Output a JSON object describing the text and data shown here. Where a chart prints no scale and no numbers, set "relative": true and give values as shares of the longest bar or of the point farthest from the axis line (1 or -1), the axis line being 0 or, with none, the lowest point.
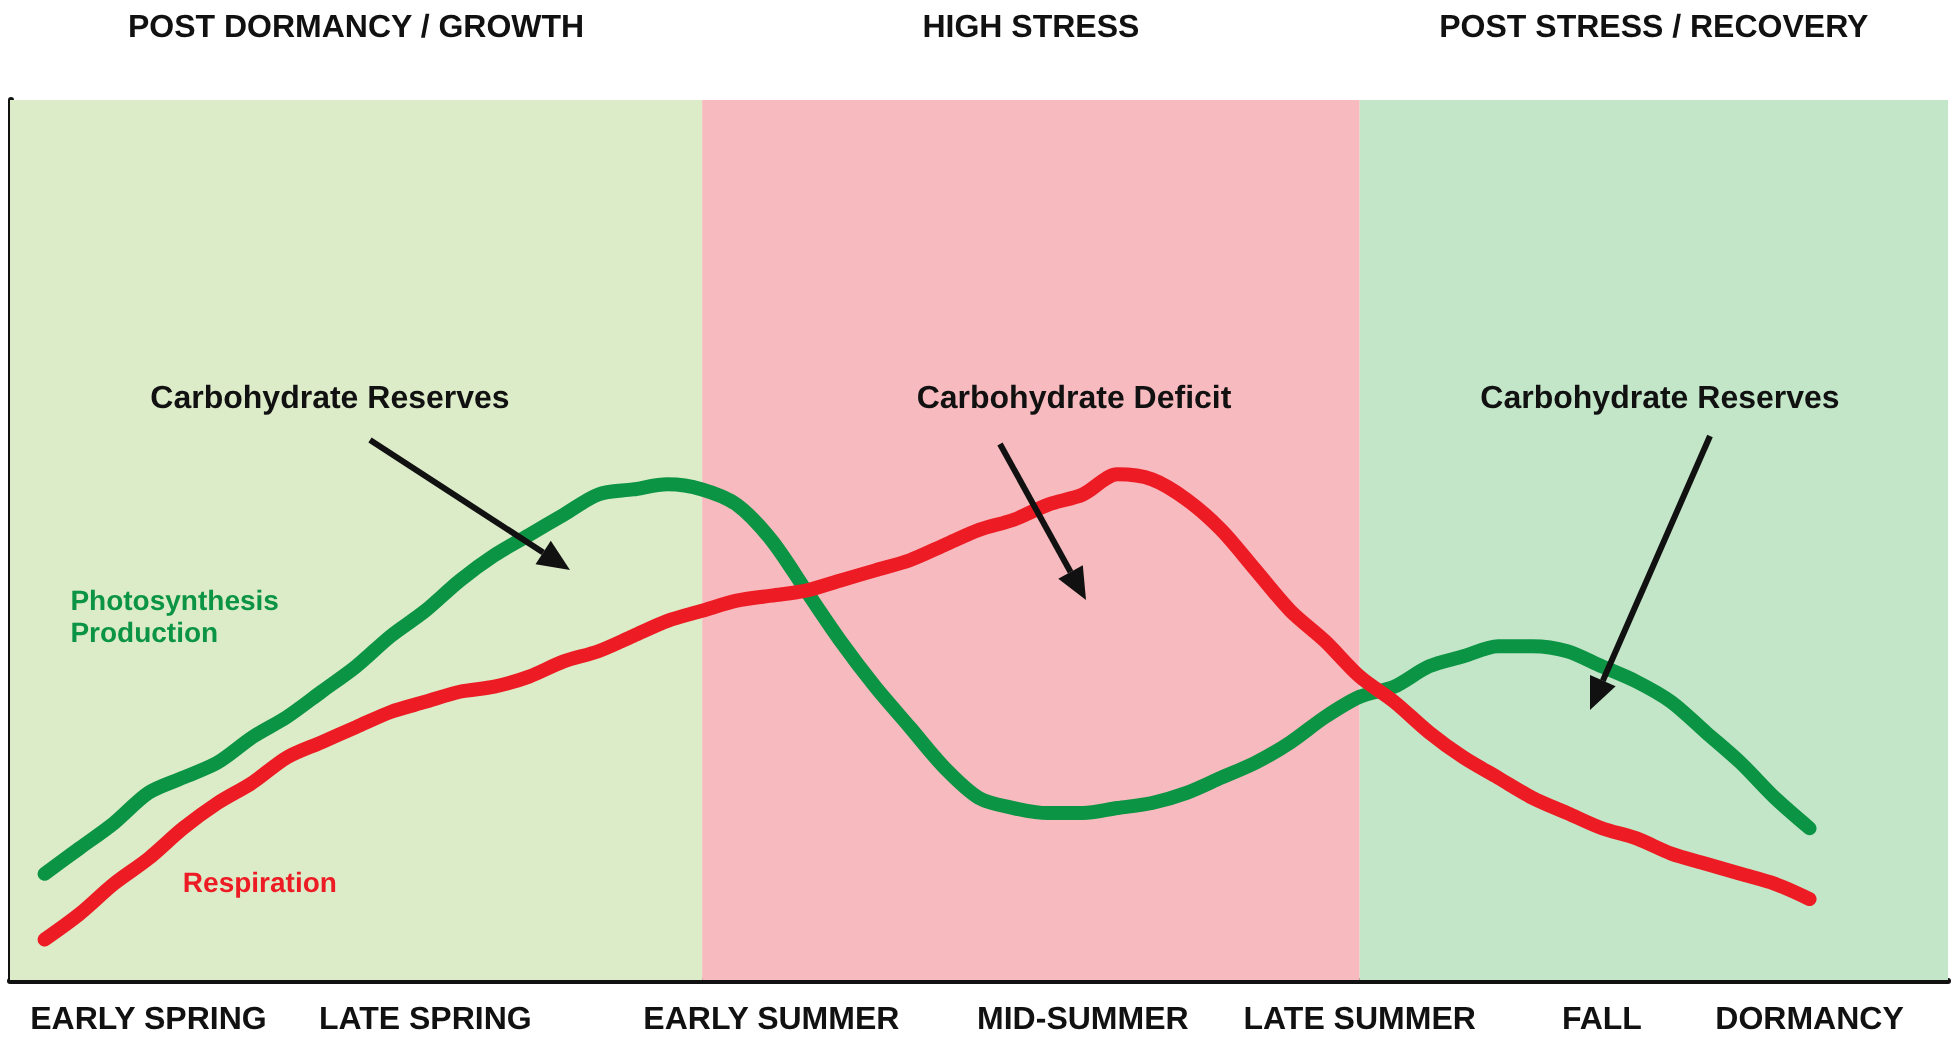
{
  "chart_data": {
    "type": "line",
    "relative": true,
    "legend": false,
    "grid": false,
    "marker": "none",
    "line_style": "solid",
    "tick_labels": "x",
    "categories": [
      null,
      null,
      null,
      null,
      "EARLY SPRING",
      null,
      null,
      null,
      null,
      null,
      null,
      null,
      "LATE SPRING",
      null,
      null,
      null,
      null,
      null,
      null,
      null,
      null,
      null,
      "EARLY SUMMER",
      null,
      null,
      null,
      null,
      null,
      null,
      null,
      null,
      "MID-SUMMER",
      null,
      null,
      null,
      null,
      null,
      null,
      null,
      "LATE SUMMER",
      null,
      null,
      null,
      null,
      null,
      null,
      "FALL",
      null,
      null,
      null,
      null,
      null,
      "DORMANCY",
      null,
      null,
      null,
      null
    ],
    "series": [
      {
        "name": "Photosynthesis Production",
        "color": "#0b9444",
        "values": [
          null,
          0.21,
          0.26,
          0.31,
          0.37,
          0.4,
          0.43,
          0.48,
          0.52,
          0.57,
          0.62,
          0.68,
          0.73,
          0.79,
          0.84,
          0.88,
          0.92,
          0.96,
          0.97,
          0.98,
          0.97,
          0.94,
          0.87,
          0.77,
          0.67,
          0.58,
          0.5,
          0.42,
          0.36,
          0.34,
          0.33,
          0.33,
          0.34,
          0.35,
          0.37,
          0.4,
          0.43,
          0.47,
          0.52,
          0.56,
          0.58,
          0.62,
          0.64,
          0.66,
          0.66,
          0.65,
          0.62,
          0.59,
          0.55,
          0.49,
          0.43,
          0.36,
          0.3,
          null,
          null,
          null,
          null
        ]
      },
      {
        "name": "Respiration",
        "color": "#ed1c24",
        "values": [
          null,
          0.08,
          0.13,
          0.19,
          0.24,
          0.3,
          0.35,
          0.39,
          0.44,
          0.47,
          0.5,
          0.53,
          0.55,
          0.57,
          0.58,
          0.6,
          0.63,
          0.65,
          0.68,
          0.71,
          0.73,
          0.75,
          0.76,
          0.77,
          0.79,
          0.81,
          0.83,
          0.86,
          0.89,
          0.91,
          0.94,
          0.96,
          1.0,
          0.99,
          0.95,
          0.89,
          0.81,
          0.73,
          0.67,
          0.6,
          0.55,
          0.49,
          0.44,
          0.4,
          0.36,
          0.33,
          0.3,
          0.28,
          0.25,
          0.23,
          0.21,
          0.19,
          0.16,
          null,
          null,
          null,
          null
        ]
      }
    ],
    "annotations": [
      "POST DORMANCY / GROWTH",
      "HIGH STRESS",
      "POST STRESS / RECOVERY",
      "Carbohydrate Reserves",
      "Carbohydrate Deficit",
      "Carbohydrate Reserves"
    ]
  }
}
